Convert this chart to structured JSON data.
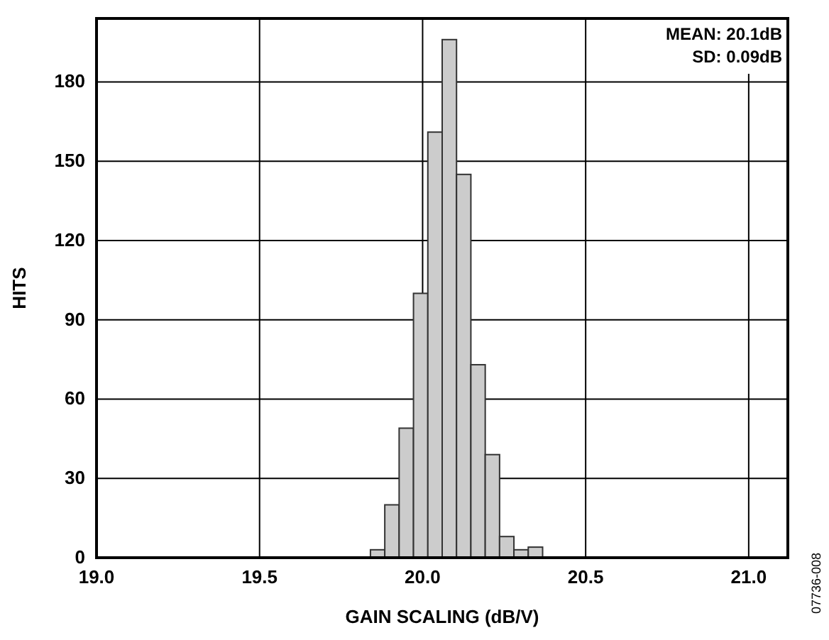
{
  "chart_data": {
    "type": "histogram",
    "xlabel": "GAIN SCALING (dB/V)",
    "ylabel": "HITS",
    "bins": [
      19.84,
      19.884,
      19.928,
      19.972,
      20.016,
      20.06,
      20.104,
      20.148,
      20.192,
      20.236,
      20.28,
      20.324,
      20.368
    ],
    "values": [
      3,
      20,
      49,
      100,
      161,
      196,
      145,
      73,
      39,
      8,
      3,
      4
    ],
    "color": "#cccccc",
    "xlim": [
      19.0,
      21.12
    ],
    "xticks": [
      {
        "value": 19.0,
        "label": "19.0"
      },
      {
        "value": 19.5,
        "label": "19.5"
      },
      {
        "value": 20.0,
        "label": "20.0"
      },
      {
        "value": 20.5,
        "label": "20.5"
      },
      {
        "value": 21.0,
        "label": "21.0"
      }
    ],
    "ylim": [
      0,
      204
    ],
    "yticks": [
      0,
      30,
      60,
      90,
      120,
      150,
      180
    ],
    "grid": true,
    "annotations": [
      "MEAN: 20.1dB",
      "SD: 0.09dB",
      "07736-008"
    ]
  }
}
